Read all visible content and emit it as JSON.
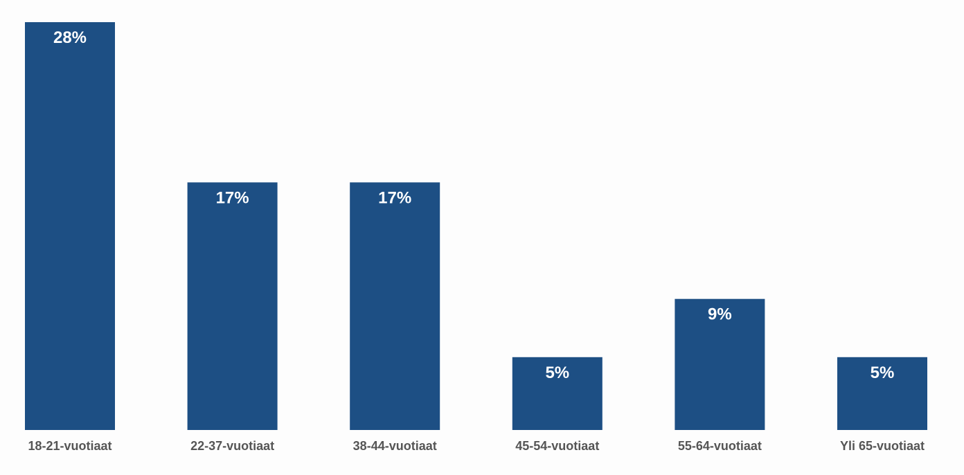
{
  "chart_data": {
    "type": "bar",
    "title": "",
    "xlabel": "",
    "ylabel": "",
    "ylim": [
      0,
      28
    ],
    "grid": false,
    "legend": "none",
    "bar_color": "#1d4f84",
    "categories": [
      "18-21-vuotiaat",
      "22-37-vuotiaat",
      "38-44-vuotiaat",
      "45-54-vuotiaat",
      "55-64-vuotiaat",
      "Yli 65-vuotiaat"
    ],
    "values": [
      28,
      17,
      17,
      5,
      9,
      5
    ],
    "value_labels": [
      "28%",
      "17%",
      "17%",
      "5%",
      "9%",
      "5%"
    ]
  }
}
